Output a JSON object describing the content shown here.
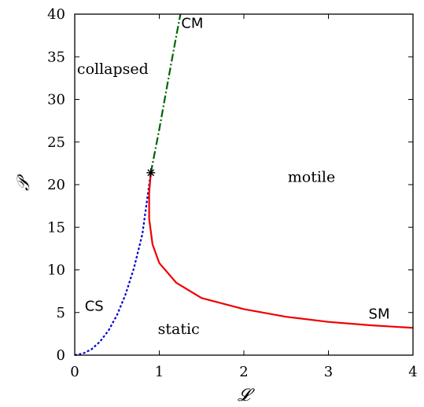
{
  "chart_data": {
    "type": "line",
    "title": "",
    "xlabel": "𝓛",
    "ylabel": "𝒫",
    "xlim": [
      0,
      4
    ],
    "ylim": [
      0,
      40
    ],
    "xticks": [
      0,
      1,
      2,
      3,
      4
    ],
    "yticks": [
      0,
      5,
      10,
      15,
      20,
      25,
      30,
      35,
      40
    ],
    "grid": false,
    "legend": "none",
    "series": [
      {
        "name": "CS",
        "color": "#0000cc",
        "style": "dotted",
        "points": [
          [
            0,
            0
          ],
          [
            0.1,
            0.2
          ],
          [
            0.2,
            0.7
          ],
          [
            0.3,
            1.6
          ],
          [
            0.4,
            2.9
          ],
          [
            0.5,
            4.7
          ],
          [
            0.6,
            7.1
          ],
          [
            0.7,
            10.2
          ],
          [
            0.8,
            14.2
          ],
          [
            0.9,
            21.4
          ]
        ]
      },
      {
        "name": "SM",
        "color": "#ee0000",
        "style": "solid",
        "points": [
          [
            0.9,
            21.4
          ],
          [
            0.88,
            19.0
          ],
          [
            0.88,
            16.0
          ],
          [
            0.92,
            13.0
          ],
          [
            1.0,
            10.8
          ],
          [
            1.2,
            8.5
          ],
          [
            1.5,
            6.7
          ],
          [
            2.0,
            5.4
          ],
          [
            2.5,
            4.5
          ],
          [
            3.0,
            3.9
          ],
          [
            3.5,
            3.5
          ],
          [
            4.0,
            3.2
          ]
        ]
      },
      {
        "name": "CM",
        "color": "#006400",
        "style": "dash-dot",
        "points": [
          [
            0.9,
            21.4
          ],
          [
            1.0,
            26.5
          ],
          [
            1.1,
            32.0
          ],
          [
            1.2,
            37.4
          ],
          [
            1.25,
            40.0
          ]
        ]
      }
    ],
    "markers": [
      {
        "x": 0.9,
        "y": 21.4,
        "symbol": "asterisk"
      }
    ],
    "annotations": [
      {
        "text": "collapsed",
        "x": 0.45,
        "y": 33,
        "style": "region"
      },
      {
        "text": "motile",
        "x": 2.8,
        "y": 20.3,
        "style": "region"
      },
      {
        "text": "static",
        "x": 1.23,
        "y": 2.5,
        "style": "region"
      },
      {
        "text": "CS",
        "x": 0.23,
        "y": 5.2,
        "style": "curve"
      },
      {
        "text": "SM",
        "x": 3.6,
        "y": 4.3,
        "style": "curve"
      },
      {
        "text": "CM",
        "x": 1.39,
        "y": 38.4,
        "style": "curve"
      }
    ]
  }
}
